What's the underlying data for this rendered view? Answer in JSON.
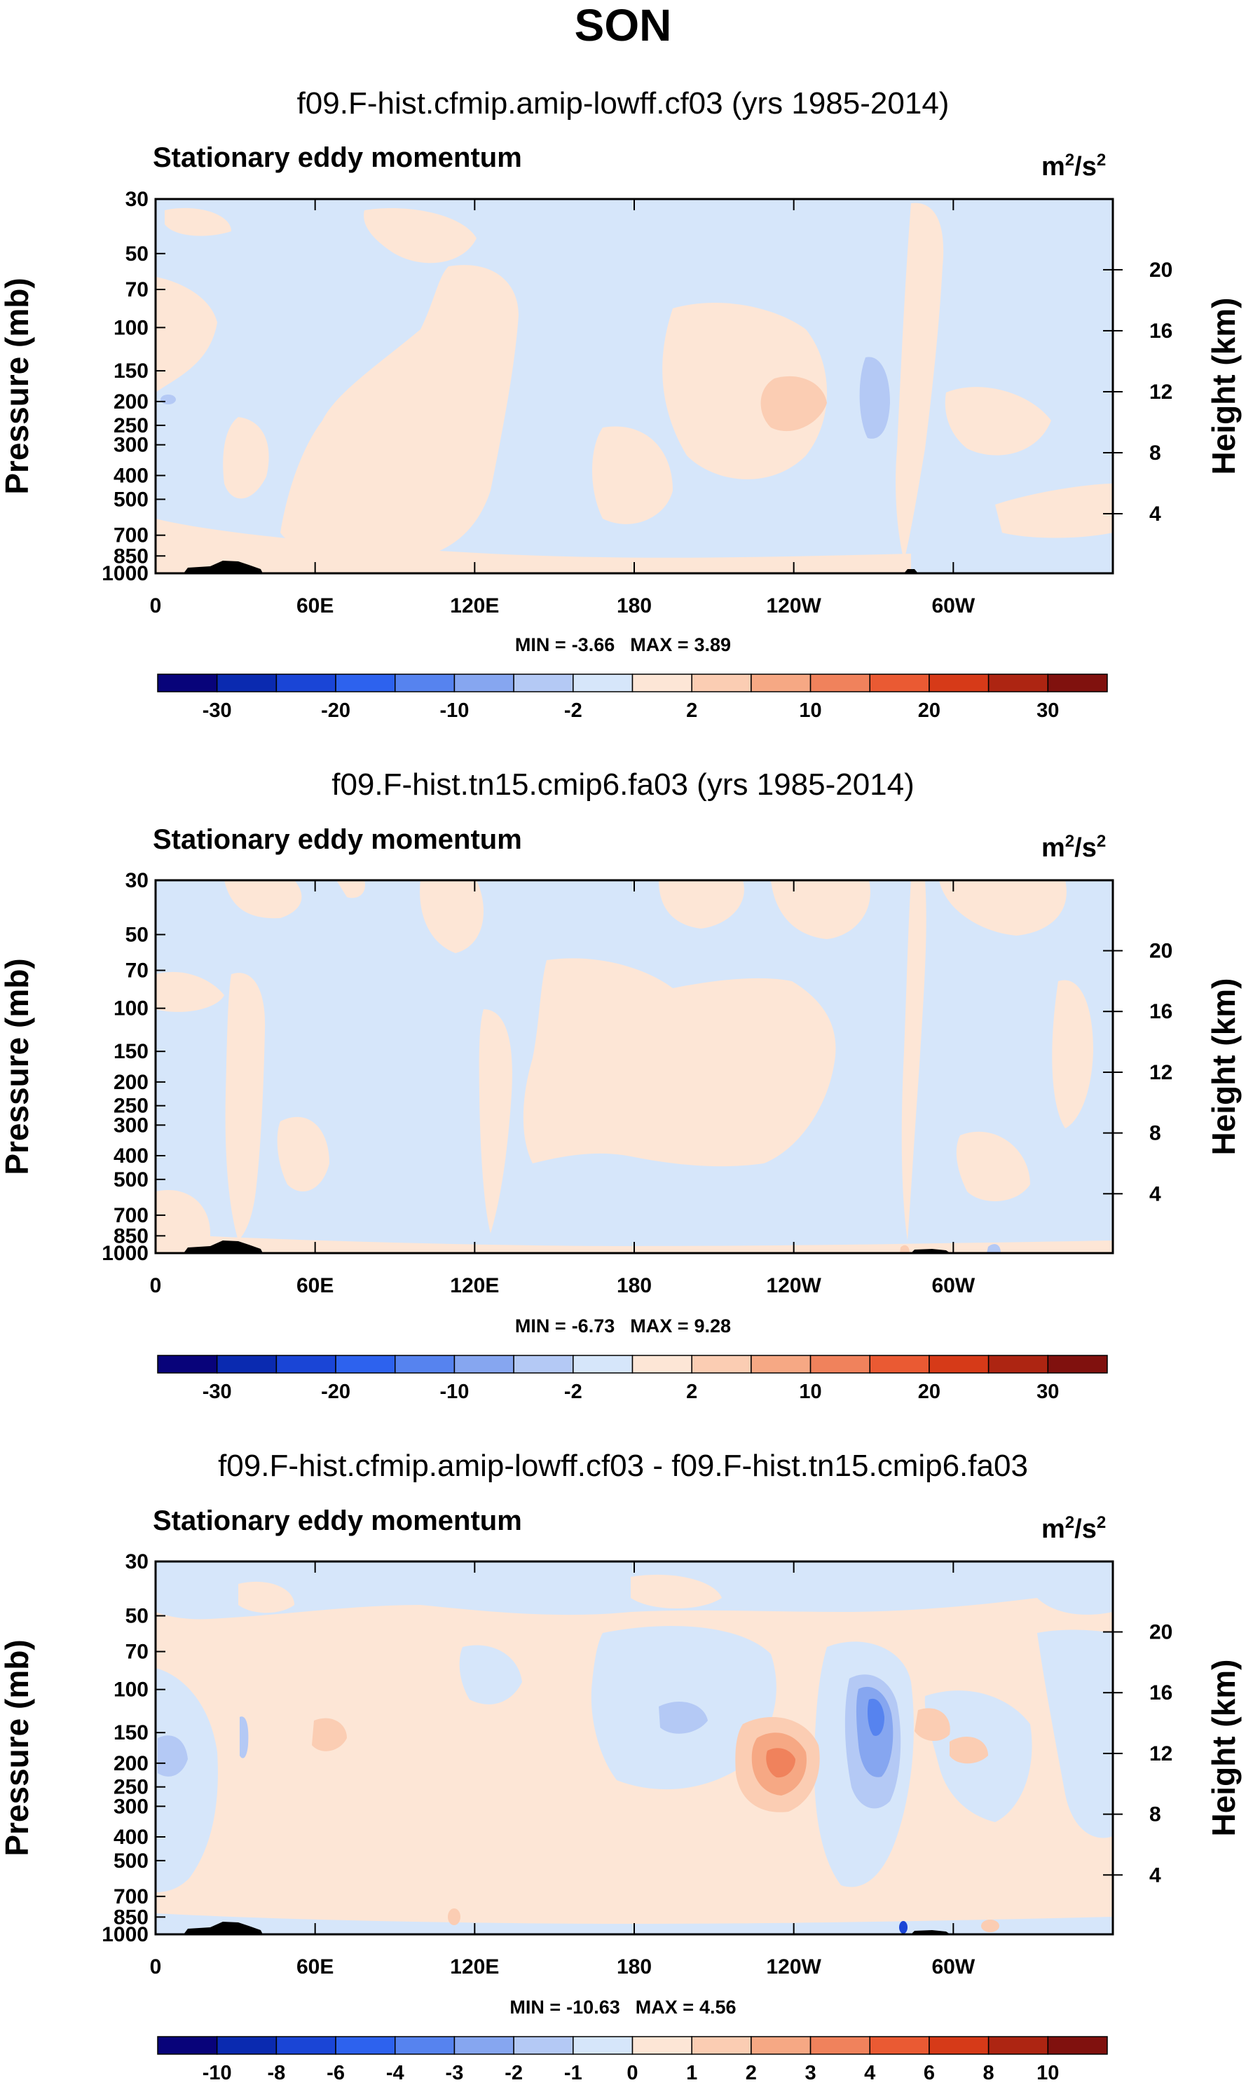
{
  "title": "SON",
  "chart_data": [
    {
      "type": "heatmap",
      "title": "f09.F-hist.cfmip.amip-lowff.cf03 (yrs 1985-2014)",
      "subtitle": "Stationary eddy momentum",
      "units": "m2/s2",
      "ylabel": "Pressure (mb)",
      "y2label": "Height (km)",
      "x_ticks": [
        "0",
        "60E",
        "120E",
        "180",
        "120W",
        "60W"
      ],
      "x_tick_lon": [
        0,
        60,
        120,
        180,
        240,
        300
      ],
      "xlim": [
        0,
        360
      ],
      "pressure_ticks": [
        30,
        50,
        70,
        100,
        150,
        200,
        250,
        300,
        400,
        500,
        700,
        850,
        1000
      ],
      "ylim_mb": [
        1000,
        30
      ],
      "height_ticks": [
        4,
        8,
        12,
        16,
        20
      ],
      "min_label": "MIN =",
      "min_value": "-3.66",
      "max_label": "MAX =",
      "max_value": "3.89",
      "colorbar_labels": [
        "-30",
        "-20",
        "-10",
        "-2",
        "2",
        "10",
        "20",
        "30"
      ],
      "contour_levels": [
        -30,
        -25,
        -20,
        -15,
        -10,
        -5,
        -2,
        0,
        2,
        5,
        10,
        15,
        20,
        25,
        30
      ],
      "features": [
        {
          "lon": 222,
          "p": 200,
          "value": 3.89
        },
        {
          "lon": 273,
          "p": 180,
          "value": -3.66
        }
      ]
    },
    {
      "type": "heatmap",
      "title": "f09.F-hist.tn15.cmip6.fa03 (yrs 1985-2014)",
      "subtitle": "Stationary eddy momentum",
      "units": "m2/s2",
      "ylabel": "Pressure (mb)",
      "y2label": "Height (km)",
      "x_ticks": [
        "0",
        "60E",
        "120E",
        "180",
        "120W",
        "60W"
      ],
      "x_tick_lon": [
        0,
        60,
        120,
        180,
        240,
        300
      ],
      "xlim": [
        0,
        360
      ],
      "pressure_ticks": [
        30,
        50,
        70,
        100,
        150,
        200,
        250,
        300,
        400,
        500,
        700,
        850,
        1000
      ],
      "ylim_mb": [
        1000,
        30
      ],
      "height_ticks": [
        4,
        8,
        12,
        16,
        20
      ],
      "min_label": "MIN =",
      "min_value": "-6.73",
      "max_label": "MAX =",
      "max_value": "9.28",
      "colorbar_labels": [
        "-30",
        "-20",
        "-10",
        "-2",
        "2",
        "10",
        "20",
        "30"
      ],
      "contour_levels": [
        -30,
        -25,
        -20,
        -15,
        -10,
        -5,
        -2,
        0,
        2,
        5,
        10,
        15,
        20,
        25,
        30
      ],
      "features": [
        {
          "lon": 282,
          "p": 990,
          "value": 9.28
        },
        {
          "lon": 316,
          "p": 990,
          "value": -6.73
        }
      ]
    },
    {
      "type": "heatmap",
      "title": "f09.F-hist.cfmip.amip-lowff.cf03 - f09.F-hist.tn15.cmip6.fa03",
      "subtitle": "Stationary eddy momentum",
      "units": "m2/s2",
      "ylabel": "Pressure (mb)",
      "y2label": "Height (km)",
      "x_ticks": [
        "0",
        "60E",
        "120E",
        "180",
        "120W",
        "60W"
      ],
      "x_tick_lon": [
        0,
        60,
        120,
        180,
        240,
        300
      ],
      "xlim": [
        0,
        360
      ],
      "pressure_ticks": [
        30,
        50,
        70,
        100,
        150,
        200,
        250,
        300,
        400,
        500,
        700,
        850,
        1000
      ],
      "ylim_mb": [
        1000,
        30
      ],
      "height_ticks": [
        4,
        8,
        12,
        16,
        20
      ],
      "min_label": "MIN =",
      "min_value": "-10.63",
      "max_label": "MAX =",
      "max_value": "4.56",
      "colorbar_labels": [
        "-10",
        "-8",
        "-6",
        "-4",
        "-3",
        "-2",
        "-1",
        "0",
        "1",
        "2",
        "3",
        "4",
        "6",
        "8",
        "10"
      ],
      "contour_levels": [
        -10,
        -8,
        -6,
        -4,
        -3,
        -2,
        -1,
        0,
        1,
        2,
        3,
        4,
        6,
        8,
        10
      ],
      "features": [
        {
          "lon": 236,
          "p": 200,
          "value": 4.56
        },
        {
          "lon": 272,
          "p": 180,
          "value": -3.5
        },
        {
          "lon": 282,
          "p": 990,
          "value": -10.63
        }
      ]
    }
  ],
  "colorbar_colors": [
    "#08037a",
    "#0a2ab0",
    "#1a45d6",
    "#2d62ee",
    "#5683ef",
    "#86a6f0",
    "#b4c9f5",
    "#d6e6fa",
    "#fde6d6",
    "#fbcdb3",
    "#f6a884",
    "#f0825c",
    "#ea5a33",
    "#d63a18",
    "#ad2512",
    "#80110e"
  ],
  "field_colors": {
    "neg_weak": "#d6e6fa",
    "pos_weak": "#fde6d6",
    "neg_2": "#b4c9f5",
    "neg_3": "#86a6f0",
    "neg_4": "#5683ef",
    "pos_2": "#fbcdb3",
    "pos_3": "#f6a884",
    "pos_4": "#f0825c",
    "topo": "#000000"
  }
}
